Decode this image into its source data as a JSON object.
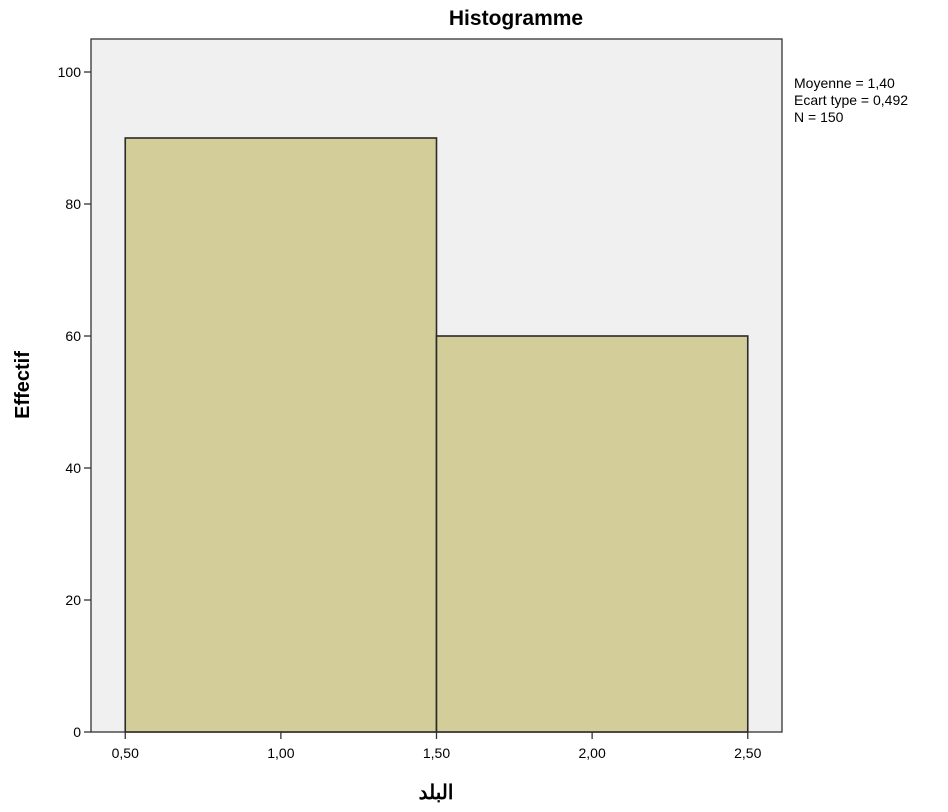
{
  "chart_data": {
    "type": "bar",
    "title": "Histogramme",
    "xlabel": "البلد",
    "ylabel": "Effectif",
    "bins": [
      {
        "from": 0.5,
        "to": 1.5,
        "value": 90
      },
      {
        "from": 1.5,
        "to": 2.5,
        "value": 60
      }
    ],
    "xlim": [
      0.39,
      2.61
    ],
    "ylim": [
      0,
      105
    ],
    "x_ticks": [
      0.5,
      1.0,
      1.5,
      2.0,
      2.5
    ],
    "x_tick_labels": [
      "0,50",
      "1,00",
      "1,50",
      "2,00",
      "2,50"
    ],
    "y_ticks": [
      0,
      20,
      40,
      60,
      80,
      100
    ],
    "y_tick_labels": [
      "0",
      "20",
      "40",
      "60",
      "80",
      "100"
    ],
    "grid": false,
    "legend": "none",
    "stats": {
      "mean": "Moyenne = 1,40",
      "std": "Ecart type = 0,492",
      "n": "N = 150"
    },
    "colors": {
      "bar_fill": "#d3cd99",
      "bar_stroke": "#2a2a2a",
      "plot_background": "#f0f0f0",
      "frame": "#333333"
    }
  }
}
